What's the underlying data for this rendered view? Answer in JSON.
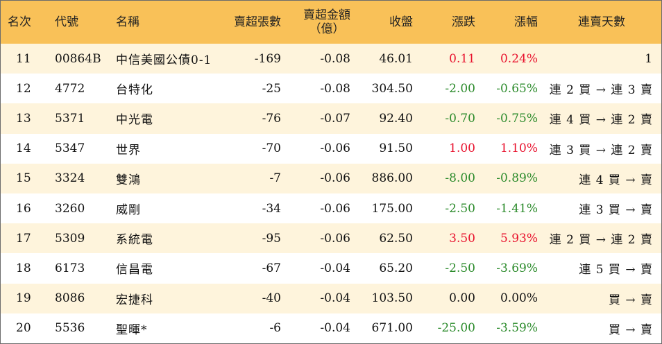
{
  "colors": {
    "header_bg": "#f9c158",
    "row_odd_bg": "#fef4dc",
    "row_even_bg": "#ffffff",
    "up": "#e8112d",
    "down": "#2a8a2a"
  },
  "header": {
    "rank": "名次",
    "code": "代號",
    "name": "名稱",
    "net_sell_shares": "賣超張數",
    "net_sell_amount_line1": "賣超金額",
    "net_sell_amount_line2": "（億）",
    "close": "收盤",
    "change": "漲跌",
    "change_pct": "漲幅",
    "streak": "連賣天數"
  },
  "rows": [
    {
      "rank": "11",
      "code": "00864B",
      "name": "中信美國公債0-1",
      "shares": "-169",
      "amount": "-0.08",
      "close": "46.01",
      "change": "0.11",
      "pct": "0.24%",
      "dir": "pos",
      "streak": "1"
    },
    {
      "rank": "12",
      "code": "4772",
      "name": "台特化",
      "shares": "-25",
      "amount": "-0.08",
      "close": "304.50",
      "change": "-2.00",
      "pct": "-0.65%",
      "dir": "neg",
      "streak": "連 2 買 → 連 3 賣"
    },
    {
      "rank": "13",
      "code": "5371",
      "name": "中光電",
      "shares": "-76",
      "amount": "-0.07",
      "close": "92.40",
      "change": "-0.70",
      "pct": "-0.75%",
      "dir": "neg",
      "streak": "連 4 買 → 連 2 賣"
    },
    {
      "rank": "14",
      "code": "5347",
      "name": "世界",
      "shares": "-70",
      "amount": "-0.06",
      "close": "91.50",
      "change": "1.00",
      "pct": "1.10%",
      "dir": "pos",
      "streak": "連 3 買 → 連 2 賣"
    },
    {
      "rank": "15",
      "code": "3324",
      "name": "雙鴻",
      "shares": "-7",
      "amount": "-0.06",
      "close": "886.00",
      "change": "-8.00",
      "pct": "-0.89%",
      "dir": "neg",
      "streak": "連 4 買 → 賣"
    },
    {
      "rank": "16",
      "code": "3260",
      "name": "威剛",
      "shares": "-34",
      "amount": "-0.06",
      "close": "175.00",
      "change": "-2.50",
      "pct": "-1.41%",
      "dir": "neg",
      "streak": "連 3 買 → 賣"
    },
    {
      "rank": "17",
      "code": "5309",
      "name": "系統電",
      "shares": "-95",
      "amount": "-0.06",
      "close": "62.50",
      "change": "3.50",
      "pct": "5.93%",
      "dir": "pos",
      "streak": "連 2 買 → 連 2 賣"
    },
    {
      "rank": "18",
      "code": "6173",
      "name": "信昌電",
      "shares": "-67",
      "amount": "-0.04",
      "close": "65.20",
      "change": "-2.50",
      "pct": "-3.69%",
      "dir": "neg",
      "streak": "連 5 買 → 賣"
    },
    {
      "rank": "19",
      "code": "8086",
      "name": "宏捷科",
      "shares": "-40",
      "amount": "-0.04",
      "close": "103.50",
      "change": "0.00",
      "pct": "0.00%",
      "dir": "zero",
      "streak": "買 → 賣"
    },
    {
      "rank": "20",
      "code": "5536",
      "name": "聖暉*",
      "shares": "-6",
      "amount": "-0.04",
      "close": "671.00",
      "change": "-25.00",
      "pct": "-3.59%",
      "dir": "neg",
      "streak": "買 → 賣"
    }
  ]
}
